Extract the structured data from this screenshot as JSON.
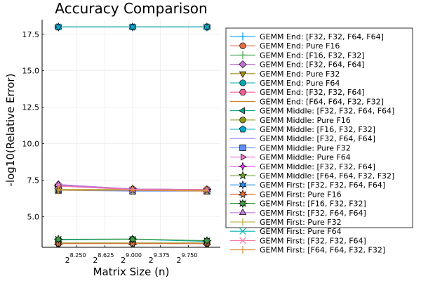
{
  "chart_data": {
    "type": "line",
    "title": "Accuracy Comparison",
    "xlabel": "Matrix Size (n)",
    "ylabel": "-log10(Relative Error)",
    "x_scale": "log2",
    "x": [
      256,
      512,
      1024
    ],
    "xlim": [
      220,
      1160
    ],
    "ylim": [
      2.9,
      18.5
    ],
    "x_ticks": [
      {
        "value": 304.4,
        "base": "2",
        "exp": "8.250"
      },
      {
        "value": 394.9,
        "base": "2",
        "exp": "8.625"
      },
      {
        "value": 512,
        "base": "2",
        "exp": "9.000"
      },
      {
        "value": 663.8,
        "base": "2",
        "exp": "9.375"
      },
      {
        "value": 860.7,
        "base": "2",
        "exp": "9.750"
      }
    ],
    "y_ticks": [
      5.0,
      7.5,
      10.0,
      12.5,
      15.0,
      17.5
    ],
    "y_tick_labels": [
      "5.0",
      "7.5",
      "10.0",
      "12.5",
      "15.0",
      "17.5"
    ],
    "grid": true,
    "legend_position": "outside-right",
    "series": [
      {
        "name": "GEMM End: [F32, F32, F64, F64]",
        "color": "#009AFA",
        "marker": "cross",
        "values": [
          18.0,
          18.0,
          18.0
        ]
      },
      {
        "name": "GEMM End: Pure F16",
        "color": "#E36F47",
        "marker": "circle",
        "values": [
          3.15,
          3.18,
          3.15
        ]
      },
      {
        "name": "GEMM End: [F16, F32, F32]",
        "color": "#3EA44E",
        "marker": "cross",
        "values": [
          3.45,
          3.47,
          3.35
        ]
      },
      {
        "name": "GEMM End: [F32, F64, F64]",
        "color": "#C371D2",
        "marker": "diamond",
        "values": [
          7.2,
          6.9,
          6.85
        ]
      },
      {
        "name": "GEMM End: Pure F32",
        "color": "#AC8E18",
        "marker": "triangle-down",
        "values": [
          6.85,
          6.85,
          6.8
        ]
      },
      {
        "name": "GEMM End: Pure F64",
        "color": "#00A9AD",
        "marker": "circle",
        "values": [
          18.0,
          18.0,
          18.0
        ]
      },
      {
        "name": "GEMM End: [F32, F32, F64]",
        "color": "#ED5E93",
        "marker": "hexagon",
        "values": [
          7.1,
          6.85,
          6.85
        ]
      },
      {
        "name": "GEMM End: [F64, F64, F32, F32]",
        "color": "#C68225",
        "marker": "none",
        "values": [
          6.8,
          6.8,
          6.75
        ]
      },
      {
        "name": "GEMM Middle: [F32, F32, F64, F64]",
        "color": "#00A98D",
        "marker": "triangle-left",
        "values": [
          18.0,
          18.0,
          18.0
        ]
      },
      {
        "name": "GEMM Middle: Pure F16",
        "color": "#8E971E",
        "marker": "circle",
        "values": [
          3.2,
          3.2,
          3.2
        ]
      },
      {
        "name": "GEMM Middle: [F16, F32, F32]",
        "color": "#00A8CB",
        "marker": "pentagon",
        "values": [
          3.4,
          3.45,
          3.3
        ]
      },
      {
        "name": "GEMM Middle: [F32, F64, F64]",
        "color": "#9B7FE9",
        "marker": "none",
        "values": [
          7.15,
          6.9,
          6.85
        ]
      },
      {
        "name": "GEMM Middle: Pure F32",
        "color": "#618DF6",
        "marker": "square",
        "values": [
          6.8,
          6.75,
          6.75
        ]
      },
      {
        "name": "GEMM Middle: Pure F64",
        "color": "#F16BC8",
        "marker": "triangle-right",
        "values": [
          18.0,
          18.0,
          18.0
        ]
      },
      {
        "name": "GEMM Middle: [F32, F32, F64]",
        "color": "#DC48E6",
        "marker": "star4",
        "values": [
          7.1,
          6.9,
          6.85
        ]
      },
      {
        "name": "GEMM Middle: [F64, F64, F32, F32]",
        "color": "#6BA131",
        "marker": "star5",
        "values": [
          6.85,
          6.85,
          6.8
        ]
      },
      {
        "name": "GEMM First: [F32, F32, F64, F64]",
        "color": "#2D8FE6",
        "marker": "star6",
        "values": [
          18.0,
          18.0,
          18.0
        ]
      },
      {
        "name": "GEMM First: Pure F16",
        "color": "#E0703F",
        "marker": "star7",
        "values": [
          3.15,
          3.15,
          3.15
        ]
      },
      {
        "name": "GEMM First: [F16, F32, F32]",
        "color": "#3F9E45",
        "marker": "star8",
        "values": [
          3.45,
          3.45,
          3.35
        ]
      },
      {
        "name": "GEMM First: [F32, F64, F64]",
        "color": "#C47CDB",
        "marker": "triangle-up",
        "values": [
          7.2,
          6.9,
          6.85
        ]
      },
      {
        "name": "GEMM First: Pure F32",
        "color": "#B9A52B",
        "marker": "vline",
        "values": [
          6.85,
          6.85,
          6.8
        ]
      },
      {
        "name": "GEMM First: Pure F64",
        "color": "#00B4AD",
        "marker": "xcross",
        "values": [
          18.0,
          18.0,
          18.0
        ]
      },
      {
        "name": "GEMM First: [F32, F32, F64]",
        "color": "#F27AA3",
        "marker": "xcross",
        "values": [
          7.1,
          6.85,
          6.85
        ]
      },
      {
        "name": "GEMM First: [F64, F64, F32, F32]",
        "color": "#D98F3A",
        "marker": "vline",
        "values": [
          6.8,
          6.8,
          6.75
        ]
      }
    ]
  }
}
